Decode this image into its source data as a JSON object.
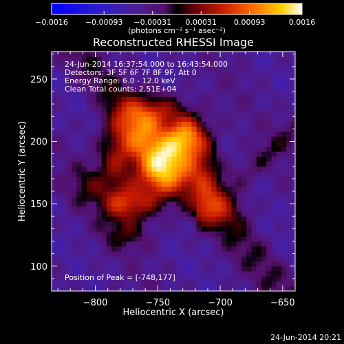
{
  "chart_data": {
    "type": "heatmap",
    "title": "Reconstructed RHESSI Image",
    "xlabel": "Heliocentric X (arcsec)",
    "ylabel": "Heliocentric Y (arcsec)",
    "xlim": [
      -835,
      -640
    ],
    "ylim": [
      80,
      272
    ],
    "x_ticks": [
      -800,
      -750,
      -700,
      -650
    ],
    "y_ticks": [
      100,
      150,
      200,
      250
    ],
    "x_tick_labels": [
      "−800",
      "−750",
      "−700",
      "−650"
    ],
    "y_tick_labels": [
      "100",
      "150",
      "200",
      "250"
    ],
    "colorbar": {
      "range": [
        -0.0016,
        0.0016
      ],
      "tick_labels": [
        "−0.0016",
        "−0.00093",
        "−0.00031",
        "0.00031",
        "0.00093",
        "0.0016"
      ],
      "tick_values": [
        -0.0016,
        -0.00093,
        -0.00031,
        0.00031,
        0.00093,
        0.0016
      ],
      "unit_label": "(photons cm⁻² s⁻¹ asec⁻²)"
    },
    "annotations": [
      "24-Jun-2014 16:37:54.000 to 16:43:54.000",
      "Detectors: 3F 5F 6F 7F 8F 9F, Att 0",
      "Energy Range: 6.0 - 12.0 keV",
      "Clean     Total counts: 2.51E+04"
    ],
    "peak_label": "Position of Peak = [-748,177]",
    "peak": [
      -748,
      177
    ],
    "sources": [
      {
        "x": -748,
        "y": 177,
        "amp": 1.0,
        "sx": 14,
        "sy": 16
      },
      {
        "x": -727,
        "y": 203,
        "amp": 0.95,
        "sx": 12,
        "sy": 12
      },
      {
        "x": -772,
        "y": 150,
        "amp": 0.6,
        "sx": 14,
        "sy": 10
      },
      {
        "x": -768,
        "y": 205,
        "amp": 0.55,
        "sx": 14,
        "sy": 16
      },
      {
        "x": -752,
        "y": 225,
        "amp": 0.45,
        "sx": 18,
        "sy": 10
      },
      {
        "x": -785,
        "y": 180,
        "amp": 0.4,
        "sx": 10,
        "sy": 24
      },
      {
        "x": -712,
        "y": 175,
        "amp": 0.45,
        "sx": 10,
        "sy": 16
      },
      {
        "x": -700,
        "y": 145,
        "amp": 0.3,
        "sx": 16,
        "sy": 10
      },
      {
        "x": -775,
        "y": 125,
        "amp": 0.25,
        "sx": 14,
        "sy": 8
      },
      {
        "x": -808,
        "y": 165,
        "amp": 0.25,
        "sx": 10,
        "sy": 12
      }
    ]
  },
  "footer_timestamp": "24-Jun-2014 20:21"
}
